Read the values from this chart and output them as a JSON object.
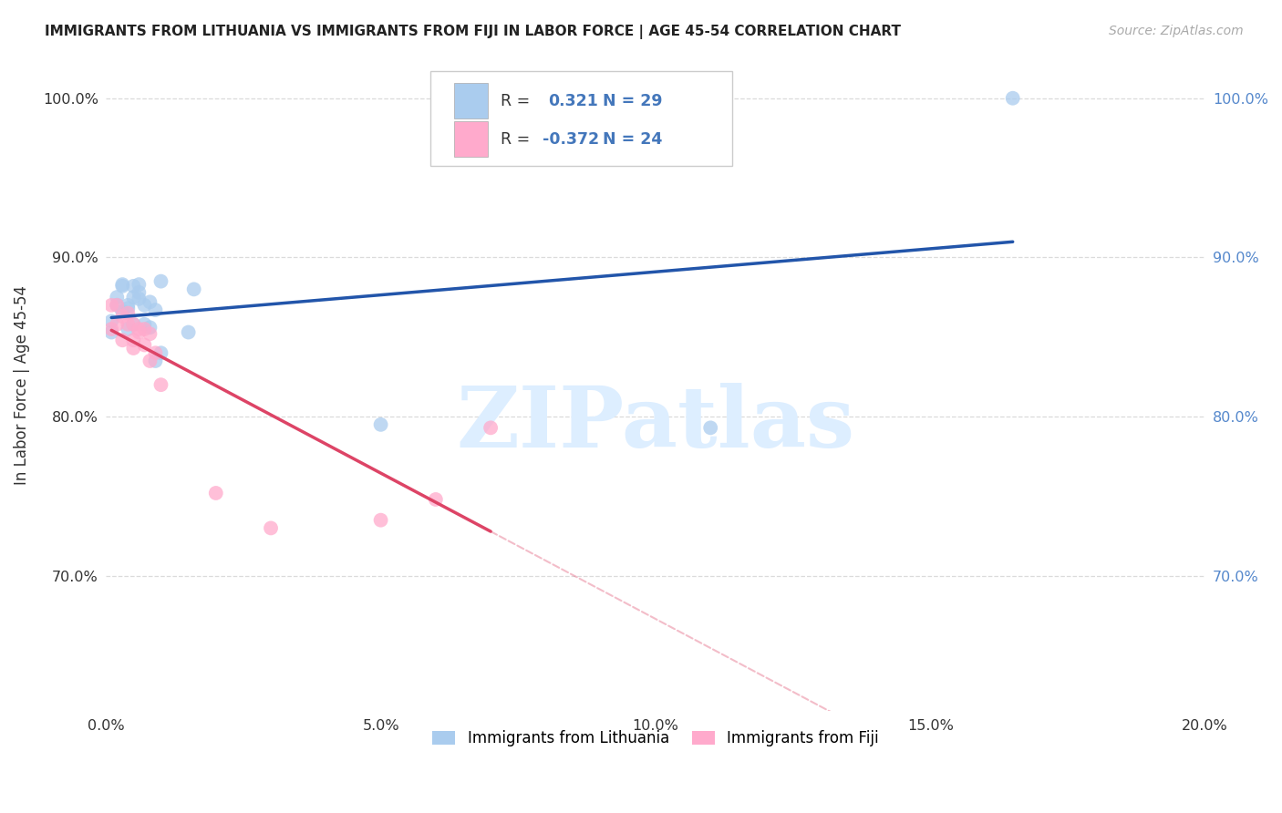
{
  "title": "IMMIGRANTS FROM LITHUANIA VS IMMIGRANTS FROM FIJI IN LABOR FORCE | AGE 45-54 CORRELATION CHART",
  "source": "Source: ZipAtlas.com",
  "ylabel": "In Labor Force | Age 45-54",
  "xlim": [
    0.0,
    0.2
  ],
  "ylim": [
    0.615,
    1.025
  ],
  "yticks": [
    0.7,
    0.8,
    0.9,
    1.0
  ],
  "ytick_labels": [
    "70.0%",
    "80.0%",
    "90.0%",
    "100.0%"
  ],
  "xticks": [
    0.0,
    0.05,
    0.1,
    0.15,
    0.2
  ],
  "xtick_labels": [
    "0.0%",
    "5.0%",
    "10.0%",
    "15.0%",
    "20.0%"
  ],
  "lithuania_x": [
    0.001,
    0.001,
    0.002,
    0.002,
    0.003,
    0.003,
    0.003,
    0.004,
    0.004,
    0.004,
    0.005,
    0.005,
    0.005,
    0.006,
    0.006,
    0.006,
    0.007,
    0.007,
    0.008,
    0.008,
    0.009,
    0.009,
    0.01,
    0.01,
    0.015,
    0.016,
    0.05,
    0.11,
    0.165
  ],
  "lithuania_y": [
    0.86,
    0.853,
    0.875,
    0.87,
    0.882,
    0.866,
    0.883,
    0.868,
    0.87,
    0.855,
    0.882,
    0.875,
    0.858,
    0.883,
    0.878,
    0.874,
    0.87,
    0.858,
    0.872,
    0.856,
    0.867,
    0.835,
    0.885,
    0.84,
    0.853,
    0.88,
    0.795,
    0.793,
    1.0
  ],
  "fiji_x": [
    0.001,
    0.001,
    0.002,
    0.002,
    0.003,
    0.003,
    0.004,
    0.004,
    0.005,
    0.005,
    0.005,
    0.006,
    0.006,
    0.007,
    0.007,
    0.008,
    0.008,
    0.009,
    0.01,
    0.02,
    0.03,
    0.05,
    0.06,
    0.07
  ],
  "fiji_y": [
    0.87,
    0.855,
    0.87,
    0.858,
    0.863,
    0.848,
    0.865,
    0.858,
    0.858,
    0.848,
    0.843,
    0.855,
    0.853,
    0.855,
    0.845,
    0.852,
    0.835,
    0.84,
    0.82,
    0.752,
    0.73,
    0.735,
    0.748,
    0.793
  ],
  "R_lithuania": 0.321,
  "N_lithuania": 29,
  "R_fiji": -0.372,
  "N_fiji": 24,
  "color_lithuania": "#AACCEE",
  "color_fiji": "#FFAACC",
  "line_color_lithuania": "#2255AA",
  "line_color_fiji": "#DD4466",
  "legend_text_color": "#4477BB",
  "watermark_text": "ZIPatlas",
  "watermark_color": "#DDEEFF",
  "background_color": "#FFFFFF",
  "grid_color": "#CCCCCC",
  "right_tick_color": "#5588CC"
}
